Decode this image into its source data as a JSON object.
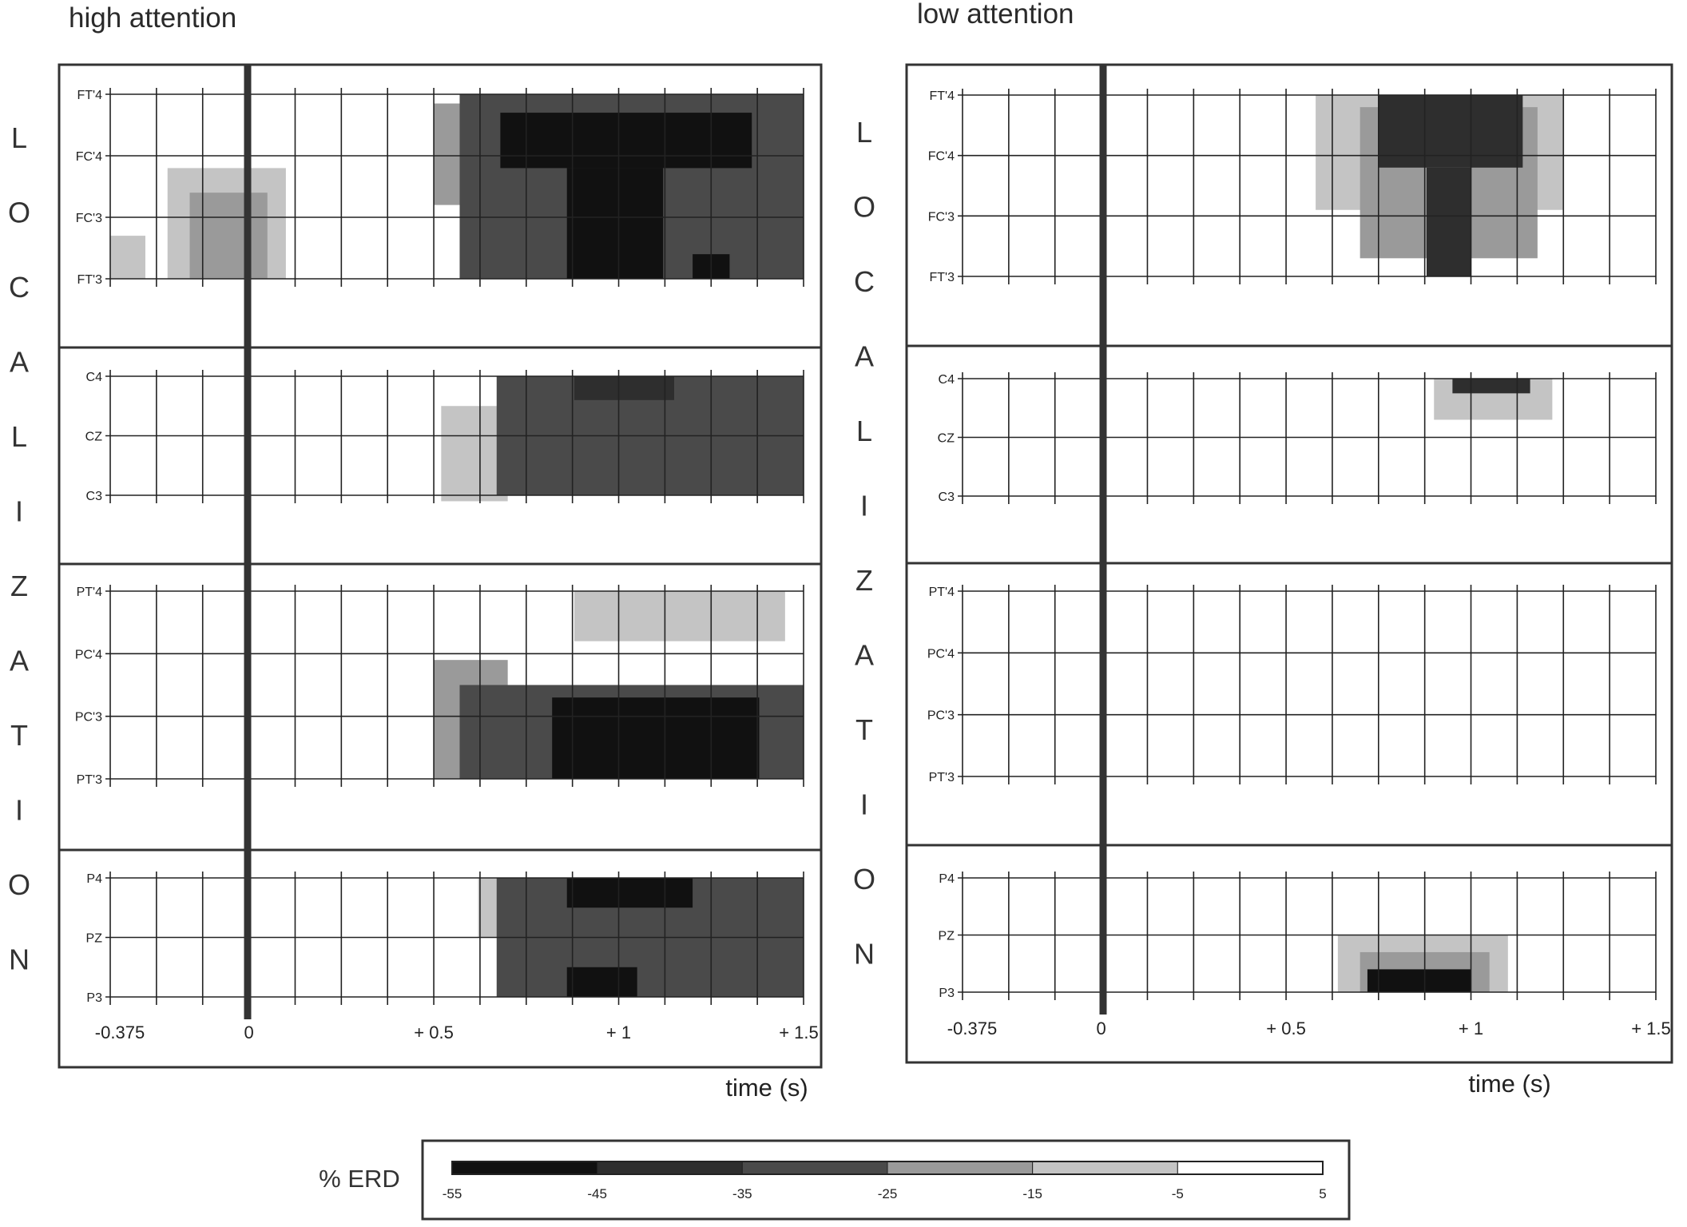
{
  "chart_data": {
    "type": "heatmap",
    "time_unit": "s",
    "xlim": [
      -0.375,
      1.5
    ],
    "x_ticks": [
      "-0.375",
      "0",
      "+ 0.5",
      "+ 1",
      "+ 1.5"
    ],
    "x_tick_values": [
      -0.375,
      0,
      0.5,
      1,
      1.5
    ],
    "xlabel": "time (s)",
    "side_label": "LOCALIZATION",
    "colorbar": {
      "title": "% ERD",
      "ticks": [
        "-55",
        "-45",
        "-35",
        "-25",
        "-15",
        "-5",
        "5"
      ],
      "levels": [
        {
          "from": -55,
          "to": -45,
          "color": "#111111"
        },
        {
          "from": -45,
          "to": -35,
          "color": "#2e2e2e"
        },
        {
          "from": -35,
          "to": -25,
          "color": "#4a4a4a"
        },
        {
          "from": -25,
          "to": -15,
          "color": "#9a9a9a"
        },
        {
          "from": -15,
          "to": -5,
          "color": "#c4c4c4"
        },
        {
          "from": -5,
          "to": 5,
          "color": "#ffffff"
        }
      ]
    },
    "panels": [
      {
        "title": "high attention",
        "groups": [
          {
            "channels": [
              "FT'4",
              "FC'4",
              "FC'3",
              "FT'3"
            ],
            "regions": [
              {
                "value": -15,
                "t": [
                  -0.375,
                  -0.28
                ],
                "ch": [
                  2.3,
                  3.0
                ]
              },
              {
                "value": -15,
                "t": [
                  -0.22,
                  0.1
                ],
                "ch": [
                  1.2,
                  3.0
                ]
              },
              {
                "value": -20,
                "t": [
                  -0.16,
                  0.05
                ],
                "ch": [
                  1.6,
                  3.0
                ]
              },
              {
                "value": -20,
                "t": [
                  0.5,
                  0.62
                ],
                "ch": [
                  0.15,
                  1.8
                ]
              },
              {
                "value": -30,
                "t": [
                  0.57,
                  1.5
                ],
                "ch": [
                  0.0,
                  3.0
                ]
              },
              {
                "value": -50,
                "t": [
                  0.68,
                  1.36
                ],
                "ch": [
                  0.3,
                  1.2
                ]
              },
              {
                "value": -50,
                "t": [
                  0.86,
                  1.12
                ],
                "ch": [
                  1.2,
                  3.0
                ]
              },
              {
                "value": -50,
                "t": [
                  1.2,
                  1.3
                ],
                "ch": [
                  2.6,
                  3.0
                ]
              }
            ]
          },
          {
            "channels": [
              "C4",
              "CZ",
              "C3"
            ],
            "regions": [
              {
                "value": -15,
                "t": [
                  0.52,
                  0.7
                ],
                "ch": [
                  0.5,
                  2.1
                ]
              },
              {
                "value": -30,
                "t": [
                  0.67,
                  1.5
                ],
                "ch": [
                  0.0,
                  2.0
                ]
              },
              {
                "value": -40,
                "t": [
                  0.88,
                  1.15
                ],
                "ch": [
                  0.0,
                  0.4
                ]
              }
            ]
          },
          {
            "channels": [
              "PT'4",
              "PC'4",
              "PC'3",
              "PT'3"
            ],
            "regions": [
              {
                "value": -15,
                "t": [
                  0.88,
                  1.45
                ],
                "ch": [
                  0.0,
                  0.8
                ]
              },
              {
                "value": -20,
                "t": [
                  0.5,
                  0.7
                ],
                "ch": [
                  1.1,
                  3.0
                ]
              },
              {
                "value": -30,
                "t": [
                  0.57,
                  1.5
                ],
                "ch": [
                  1.5,
                  3.0
                ]
              },
              {
                "value": -50,
                "t": [
                  0.82,
                  1.38
                ],
                "ch": [
                  1.7,
                  3.0
                ]
              }
            ]
          },
          {
            "channels": [
              "P4",
              "PZ",
              "P3"
            ],
            "regions": [
              {
                "value": -15,
                "t": [
                  0.62,
                  1.35
                ],
                "ch": [
                  0.0,
                  1.0
                ]
              },
              {
                "value": -30,
                "t": [
                  0.67,
                  1.5
                ],
                "ch": [
                  0.0,
                  2.0
                ]
              },
              {
                "value": -50,
                "t": [
                  0.86,
                  1.2
                ],
                "ch": [
                  0.0,
                  0.5
                ]
              },
              {
                "value": -50,
                "t": [
                  0.86,
                  1.05
                ],
                "ch": [
                  1.5,
                  2.0
                ]
              }
            ]
          }
        ]
      },
      {
        "title": "low attention",
        "groups": [
          {
            "channels": [
              "FT'4",
              "FC'4",
              "FC'3",
              "FT'3"
            ],
            "regions": [
              {
                "value": -15,
                "t": [
                  0.58,
                  1.25
                ],
                "ch": [
                  0.0,
                  1.9
                ]
              },
              {
                "value": -20,
                "t": [
                  0.7,
                  1.18
                ],
                "ch": [
                  0.2,
                  2.7
                ]
              },
              {
                "value": -40,
                "t": [
                  0.75,
                  1.14
                ],
                "ch": [
                  0.0,
                  1.2
                ]
              },
              {
                "value": -40,
                "t": [
                  0.88,
                  1.0
                ],
                "ch": [
                  1.2,
                  3.0
                ]
              }
            ]
          },
          {
            "channels": [
              "C4",
              "CZ",
              "C3"
            ],
            "regions": [
              {
                "value": -15,
                "t": [
                  0.9,
                  1.22
                ],
                "ch": [
                  0.0,
                  0.7
                ]
              },
              {
                "value": -40,
                "t": [
                  0.95,
                  1.16
                ],
                "ch": [
                  0.0,
                  0.25
                ]
              }
            ]
          },
          {
            "channels": [
              "PT'4",
              "PC'4",
              "PC'3",
              "PT'3"
            ],
            "regions": []
          },
          {
            "channels": [
              "P4",
              "PZ",
              "P3"
            ],
            "regions": [
              {
                "value": -15,
                "t": [
                  0.64,
                  1.1
                ],
                "ch": [
                  1.0,
                  2.0
                ]
              },
              {
                "value": -25,
                "t": [
                  0.7,
                  1.05
                ],
                "ch": [
                  1.3,
                  2.0
                ]
              },
              {
                "value": -50,
                "t": [
                  0.72,
                  1.0
                ],
                "ch": [
                  1.6,
                  2.0
                ]
              }
            ]
          }
        ]
      }
    ]
  }
}
